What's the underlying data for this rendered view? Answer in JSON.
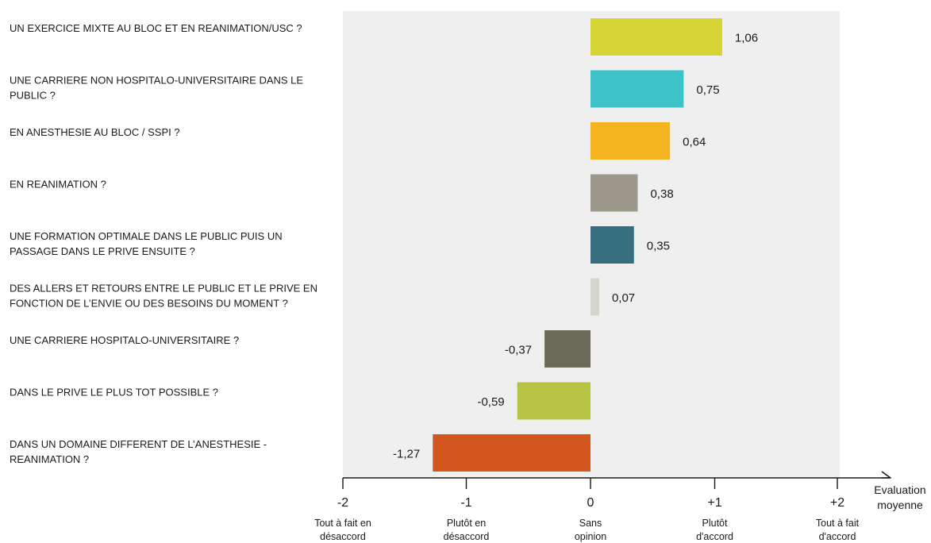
{
  "chart_data": {
    "type": "bar",
    "orientation": "horizontal",
    "categories": [
      [
        "UN EXERCICE MIXTE AU BLOC ET EN REANIMATION/USC ?"
      ],
      [
        "UNE CARRIERE NON HOSPITALO-UNIVERSITAIRE DANS LE",
        "PUBLIC ?"
      ],
      [
        "EN ANESTHESIE AU BLOC / SSPI ?"
      ],
      [
        "EN REANIMATION ?"
      ],
      [
        "UNE FORMATION OPTIMALE DANS LE PUBLIC PUIS UN",
        "PASSAGE DANS LE PRIVE ENSUITE ?"
      ],
      [
        "DES ALLERS ET RETOURS ENTRE LE PUBLIC ET LE PRIVE EN",
        "FONCTION DE L’ENVIE OU DES BESOINS DU MOMENT ?"
      ],
      [
        "UNE CARRIERE HOSPITALO-UNIVERSITAIRE ?"
      ],
      [
        "DANS LE PRIVE LE PLUS TOT POSSIBLE ?"
      ],
      [
        "DANS UN DOMAINE DIFFERENT DE L’ANESTHESIE -",
        "REANIMATION ?"
      ]
    ],
    "values": [
      1.06,
      0.75,
      0.64,
      0.38,
      0.35,
      0.07,
      -0.37,
      -0.59,
      -1.27
    ],
    "value_labels": [
      "1,06",
      "0,75",
      "0,64",
      "0,38",
      "0,35",
      "0,07",
      "-0,37",
      "-0,59",
      "-1,27"
    ],
    "colors": [
      "#d6d334",
      "#3cc3c8",
      "#f5b520",
      "#9c998c",
      "#386f7e",
      "#d6d5cc",
      "#6b6a59",
      "#b5c443",
      "#d3561f"
    ],
    "xlim": [
      -2,
      2
    ],
    "ticks": [
      {
        "value": -2,
        "label": "-2",
        "desc": [
          "Tout à fait en",
          "désaccord"
        ]
      },
      {
        "value": -1,
        "label": "-1",
        "desc": [
          "Plutôt en",
          "désaccord"
        ]
      },
      {
        "value": 0,
        "label": "0",
        "desc": [
          "Sans",
          "opinion"
        ]
      },
      {
        "value": 1,
        "label": "+1",
        "desc": [
          "Plutôt",
          "d'accord"
        ]
      },
      {
        "value": 2,
        "label": "+2",
        "desc": [
          "Tout à fait",
          "d'accord"
        ]
      }
    ],
    "xlabel": [
      "Evaluation",
      "moyenne"
    ],
    "plot_background": "#efefef"
  }
}
